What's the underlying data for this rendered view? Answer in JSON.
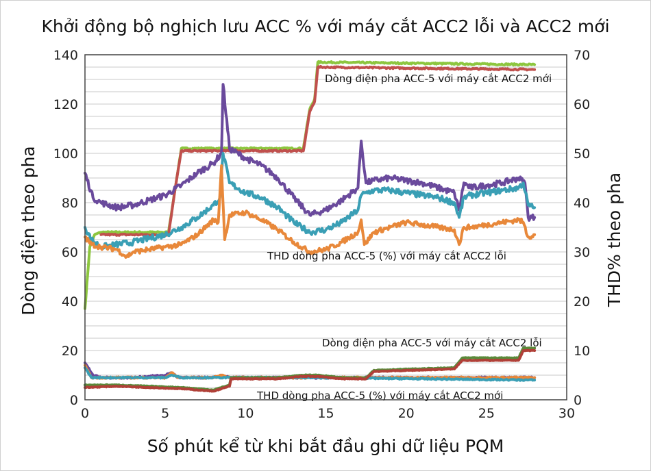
{
  "chart_data": {
    "type": "line",
    "title": "Khởi động bộ nghịch lưu ACC % với máy cắt ACC2 lỗi và ACC2 mới",
    "xlabel": "Số phút kể từ khi bắt đầu ghi dữ liệu PQM",
    "ylabel": "Dòng điện theo pha",
    "y2label": "THD% theo pha",
    "xlim": [
      0,
      30
    ],
    "ylim": [
      0,
      140
    ],
    "y2lim": [
      0,
      70
    ],
    "xticks": [
      "0",
      "5",
      "10",
      "15",
      "20",
      "25",
      "30"
    ],
    "yticks": [
      "0",
      "20",
      "40",
      "60",
      "80",
      "100",
      "120",
      "140"
    ],
    "y2ticks": [
      "0",
      "10",
      "20",
      "30",
      "40",
      "50",
      "60",
      "70"
    ],
    "grid": true,
    "annotations": {
      "current_new": "Dòng điện pha ACC-5 với máy cắt ACC2 mới",
      "thd_faulty": "THD dòng pha ACC-5 (%) với máy cắt ACC2 lỗi",
      "current_faulty": "Dòng điện pha ACC-5 với máy cắt ACC2 lỗi",
      "thd_new": "THD dòng pha ACC-5 (%) với máy cắt ACC2 mới"
    },
    "colors": {
      "green": "#8dc63f",
      "red": "#c0504d",
      "purple": "#6a4a9c",
      "teal": "#3a9fb5",
      "orange": "#e8883a",
      "olive": "#5a8a3a",
      "darkred": "#b04038"
    },
    "series": [
      {
        "color": "green",
        "axis": "left",
        "noise": 0.3,
        "x": [
          0,
          0.3,
          0.6,
          1,
          5.2,
          5.6,
          6,
          13.6,
          14,
          14.3,
          14.5,
          28
        ],
        "y": [
          37,
          62,
          67,
          68,
          68,
          85,
          102,
          102,
          118,
          122,
          137,
          136
        ]
      },
      {
        "color": "red",
        "axis": "left",
        "noise": 0.3,
        "x": [
          1,
          5.2,
          5.6,
          6,
          13.6,
          14,
          14.3,
          14.5,
          28
        ],
        "y": [
          67,
          67,
          85,
          101,
          101,
          117,
          121,
          135,
          134
        ]
      },
      {
        "color": "purple",
        "axis": "left",
        "noise": 1.2,
        "x": [
          0,
          0.5,
          1,
          2,
          3,
          4,
          5,
          6,
          7,
          8,
          8.5,
          8.6,
          9,
          10,
          11,
          12,
          13,
          14,
          15,
          16,
          17,
          17.2,
          17.5,
          18,
          19,
          20,
          21,
          22,
          23,
          23.3,
          23.6,
          24,
          25,
          26,
          27,
          27.4,
          27.6,
          28
        ],
        "y": [
          92,
          82,
          80,
          78,
          79,
          81,
          83,
          87,
          92,
          96,
          100,
          128,
          102,
          98,
          95,
          90,
          82,
          75,
          77,
          81,
          86,
          105,
          88,
          89,
          90,
          89,
          88,
          86,
          84,
          77,
          88,
          86,
          87,
          88,
          90,
          88,
          74,
          74
        ]
      },
      {
        "color": "teal",
        "axis": "left",
        "noise": 1.2,
        "x": [
          0,
          0.4,
          1,
          3,
          5,
          6,
          7,
          8,
          8.4,
          8.6,
          9,
          10,
          11,
          12,
          13,
          14,
          15,
          16,
          17,
          17.2,
          17.5,
          18,
          19,
          20,
          21,
          22,
          23,
          23.3,
          23.6,
          24,
          25,
          26,
          27,
          27.3,
          27.6,
          28
        ],
        "y": [
          70,
          65,
          62,
          64,
          67,
          70,
          74,
          79,
          82,
          100,
          88,
          84,
          82,
          78,
          72,
          68,
          69,
          72,
          77,
          83,
          84,
          85,
          85,
          84,
          83,
          82,
          80,
          74,
          82,
          83,
          84,
          85,
          86,
          88,
          79,
          78
        ]
      },
      {
        "color": "orange",
        "axis": "left",
        "noise": 1.0,
        "x": [
          0,
          0.4,
          1,
          2,
          2.6,
          3,
          4,
          5,
          6,
          7,
          8,
          8.3,
          8.5,
          8.7,
          9,
          10,
          11,
          12,
          13,
          14,
          15,
          16,
          17,
          17.2,
          17.4,
          18,
          19,
          20,
          21,
          22,
          23,
          23.3,
          23.6,
          24,
          25,
          26,
          27,
          27.3,
          27.6,
          28
        ],
        "y": [
          66,
          63,
          62,
          61,
          58,
          60,
          61,
          62,
          63,
          67,
          73,
          72,
          95,
          65,
          75,
          76,
          73,
          69,
          64,
          60,
          61,
          64,
          68,
          73,
          63,
          68,
          70,
          72,
          71,
          70,
          69,
          63,
          70,
          70,
          71,
          72,
          73,
          72,
          66,
          67
        ]
      },
      {
        "color": "purple",
        "axis": "left",
        "noise": 0.3,
        "x": [
          0,
          0.5,
          1,
          3,
          5,
          5.4,
          5.8,
          8,
          8.5,
          9,
          14,
          28
        ],
        "y": [
          15,
          10,
          9,
          9,
          10,
          11,
          9,
          9,
          10,
          9,
          9,
          9
        ]
      },
      {
        "color": "orange",
        "axis": "left",
        "noise": 0.3,
        "x": [
          0,
          0.4,
          1,
          4,
          5,
          5.4,
          5.8,
          8,
          8.6,
          9,
          13.8,
          14.2,
          14.6,
          28
        ],
        "y": [
          14,
          9,
          9,
          9,
          9,
          11,
          9,
          9,
          10,
          9,
          9,
          10,
          9,
          9
        ]
      },
      {
        "color": "teal",
        "axis": "left",
        "noise": 0.25,
        "x": [
          0,
          0.4,
          1,
          5,
          5.4,
          6,
          14,
          28
        ],
        "y": [
          13,
          9,
          9,
          9,
          10,
          9,
          9,
          8
        ]
      },
      {
        "color": "olive",
        "axis": "left",
        "noise": 0.15,
        "x": [
          0,
          2,
          4,
          6,
          8,
          8.5,
          9,
          9.1,
          12,
          13.5,
          14.5,
          16,
          17.3,
          17.5,
          18,
          23,
          23.5,
          24,
          27,
          27.3,
          28
        ],
        "y": [
          6,
          6,
          5.5,
          5,
          4,
          5,
          6,
          9,
          9,
          10,
          10,
          9,
          9,
          9,
          12,
          13,
          17,
          17,
          17,
          21,
          21
        ]
      },
      {
        "color": "darkred",
        "axis": "left",
        "noise": 0.15,
        "x": [
          0,
          2,
          4,
          6,
          8,
          8.5,
          9,
          9.1,
          12,
          13.5,
          14.5,
          16,
          17.3,
          17.5,
          18,
          23,
          23.5,
          24,
          27,
          27.3,
          28
        ],
        "y": [
          5,
          5.5,
          5,
          4.5,
          3.5,
          4.5,
          5.5,
          8.5,
          8.5,
          9.5,
          9.5,
          8.5,
          8.5,
          8.5,
          11.5,
          12.5,
          16,
          16,
          16,
          20,
          20
        ]
      }
    ]
  }
}
